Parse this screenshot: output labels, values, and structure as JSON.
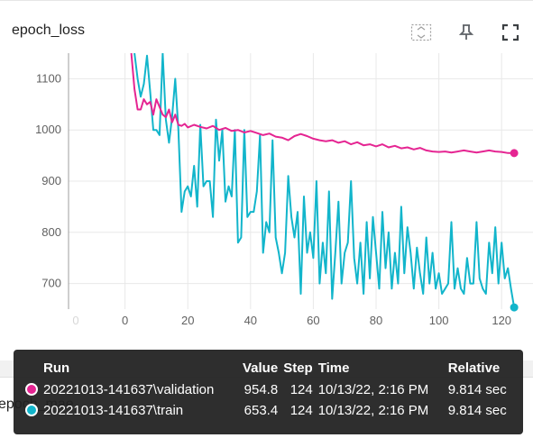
{
  "card": {
    "title": "epoch_loss",
    "toolbar": {
      "fit_icon": "fit-domain-icon",
      "pin_icon": "pin-icon",
      "fullscreen_icon": "fullscreen-icon"
    }
  },
  "under_card_title": "epoch_mae",
  "chart_data": {
    "type": "line",
    "title": "",
    "xlabel": "",
    "ylabel": "",
    "xlim": [
      -18,
      130
    ],
    "ylim": [
      650,
      1150
    ],
    "x_ticks": [
      "0",
      "0",
      "20",
      "40",
      "60",
      "80",
      "100",
      "120"
    ],
    "y_ticks": [
      "1100",
      "1000",
      "900",
      "800",
      "700"
    ],
    "grid": true,
    "series": [
      {
        "name": "20221013-141637\\validation",
        "color": "#e52592",
        "points": [
          [
            2,
            1150
          ],
          [
            3,
            1080
          ],
          [
            4,
            1040
          ],
          [
            5,
            1040
          ],
          [
            6,
            1060
          ],
          [
            7,
            1050
          ],
          [
            8,
            1055
          ],
          [
            9,
            1030
          ],
          [
            10,
            1060
          ],
          [
            11,
            1045
          ],
          [
            12,
            1030
          ],
          [
            13,
            1025
          ],
          [
            14,
            1040
          ],
          [
            15,
            1015
          ],
          [
            16,
            1030
          ],
          [
            17,
            1010
          ],
          [
            18,
            1008
          ],
          [
            19,
            1012
          ],
          [
            20,
            1005
          ],
          [
            22,
            1010
          ],
          [
            24,
            1006
          ],
          [
            26,
            1003
          ],
          [
            28,
            1008
          ],
          [
            30,
            1000
          ],
          [
            32,
            1004
          ],
          [
            34,
            998
          ],
          [
            36,
            1000
          ],
          [
            38,
            995
          ],
          [
            40,
            998
          ],
          [
            42,
            994
          ],
          [
            44,
            990
          ],
          [
            46,
            993
          ],
          [
            48,
            987
          ],
          [
            50,
            985
          ],
          [
            52,
            980
          ],
          [
            54,
            988
          ],
          [
            56,
            992
          ],
          [
            58,
            988
          ],
          [
            60,
            983
          ],
          [
            62,
            980
          ],
          [
            64,
            978
          ],
          [
            66,
            980
          ],
          [
            68,
            975
          ],
          [
            70,
            978
          ],
          [
            72,
            972
          ],
          [
            74,
            976
          ],
          [
            76,
            970
          ],
          [
            78,
            972
          ],
          [
            80,
            968
          ],
          [
            82,
            972
          ],
          [
            84,
            966
          ],
          [
            86,
            969
          ],
          [
            88,
            964
          ],
          [
            90,
            966
          ],
          [
            92,
            962
          ],
          [
            94,
            965
          ],
          [
            96,
            960
          ],
          [
            98,
            958
          ],
          [
            100,
            957
          ],
          [
            102,
            958
          ],
          [
            104,
            956
          ],
          [
            106,
            958
          ],
          [
            108,
            960
          ],
          [
            110,
            958
          ],
          [
            112,
            956
          ],
          [
            114,
            958
          ],
          [
            116,
            960
          ],
          [
            118,
            958
          ],
          [
            120,
            957
          ],
          [
            122,
            955
          ],
          [
            124,
            954.8
          ]
        ]
      },
      {
        "name": "20221013-141637\\train",
        "color": "#12b5cb",
        "points": [
          [
            3,
            1150
          ],
          [
            4,
            1100
          ],
          [
            5,
            1065
          ],
          [
            6,
            1090
          ],
          [
            7,
            1145
          ],
          [
            8,
            1075
          ],
          [
            9,
            1000
          ],
          [
            10,
            1000
          ],
          [
            11,
            990
          ],
          [
            12,
            1150
          ],
          [
            13,
            1020
          ],
          [
            14,
            975
          ],
          [
            15,
            1025
          ],
          [
            16,
            1100
          ],
          [
            17,
            1000
          ],
          [
            18,
            840
          ],
          [
            19,
            880
          ],
          [
            20,
            890
          ],
          [
            21,
            870
          ],
          [
            22,
            930
          ],
          [
            23,
            850
          ],
          [
            24,
            1010
          ],
          [
            25,
            890
          ],
          [
            26,
            900
          ],
          [
            27,
            900
          ],
          [
            28,
            830
          ],
          [
            29,
            1020
          ],
          [
            30,
            940
          ],
          [
            31,
            1000
          ],
          [
            32,
            860
          ],
          [
            33,
            890
          ],
          [
            34,
            870
          ],
          [
            35,
            1000
          ],
          [
            36,
            780
          ],
          [
            37,
            790
          ],
          [
            38,
            1000
          ],
          [
            39,
            830
          ],
          [
            40,
            840
          ],
          [
            41,
            840
          ],
          [
            42,
            880
          ],
          [
            43,
            990
          ],
          [
            44,
            760
          ],
          [
            45,
            820
          ],
          [
            46,
            800
          ],
          [
            47,
            980
          ],
          [
            48,
            790
          ],
          [
            49,
            760
          ],
          [
            50,
            720
          ],
          [
            51,
            760
          ],
          [
            52,
            910
          ],
          [
            53,
            830
          ],
          [
            54,
            790
          ],
          [
            55,
            840
          ],
          [
            56,
            680
          ],
          [
            57,
            870
          ],
          [
            58,
            760
          ],
          [
            59,
            800
          ],
          [
            60,
            750
          ],
          [
            61,
            900
          ],
          [
            62,
            700
          ],
          [
            63,
            780
          ],
          [
            64,
            720
          ],
          [
            65,
            880
          ],
          [
            66,
            670
          ],
          [
            67,
            760
          ],
          [
            68,
            860
          ],
          [
            69,
            700
          ],
          [
            70,
            760
          ],
          [
            71,
            780
          ],
          [
            72,
            900
          ],
          [
            73,
            750
          ],
          [
            74,
            700
          ],
          [
            75,
            780
          ],
          [
            76,
            680
          ],
          [
            77,
            820
          ],
          [
            78,
            710
          ],
          [
            79,
            830
          ],
          [
            80,
            760
          ],
          [
            81,
            690
          ],
          [
            82,
            840
          ],
          [
            83,
            730
          ],
          [
            84,
            800
          ],
          [
            85,
            690
          ],
          [
            86,
            760
          ],
          [
            87,
            700
          ],
          [
            88,
            850
          ],
          [
            89,
            720
          ],
          [
            90,
            810
          ],
          [
            91,
            760
          ],
          [
            92,
            690
          ],
          [
            93,
            770
          ],
          [
            94,
            720
          ],
          [
            95,
            680
          ],
          [
            96,
            790
          ],
          [
            97,
            700
          ],
          [
            98,
            760
          ],
          [
            99,
            690
          ],
          [
            100,
            720
          ],
          [
            101,
            680
          ],
          [
            102,
            690
          ],
          [
            103,
            700
          ],
          [
            104,
            820
          ],
          [
            105,
            690
          ],
          [
            106,
            730
          ],
          [
            107,
            690
          ],
          [
            108,
            680
          ],
          [
            109,
            750
          ],
          [
            110,
            700
          ],
          [
            111,
            700
          ],
          [
            112,
            820
          ],
          [
            113,
            710
          ],
          [
            114,
            690
          ],
          [
            115,
            680
          ],
          [
            116,
            780
          ],
          [
            117,
            720
          ],
          [
            118,
            810
          ],
          [
            119,
            700
          ],
          [
            120,
            780
          ],
          [
            121,
            710
          ],
          [
            122,
            730
          ],
          [
            123,
            690
          ],
          [
            124,
            653.4
          ]
        ]
      }
    ]
  },
  "tooltip": {
    "headers": {
      "run": "Run",
      "value": "Value",
      "step": "Step",
      "time": "Time",
      "relative": "Relative"
    },
    "rows": [
      {
        "color": "#e52592",
        "run": "20221013-141637\\validation",
        "value": "954.8",
        "step": "124",
        "time": "10/13/22, 2:16 PM",
        "relative": "9.814 sec"
      },
      {
        "color": "#12b5cb",
        "run": "20221013-141637\\train",
        "value": "653.4",
        "step": "124",
        "time": "10/13/22, 2:16 PM",
        "relative": "9.814 sec"
      }
    ]
  }
}
